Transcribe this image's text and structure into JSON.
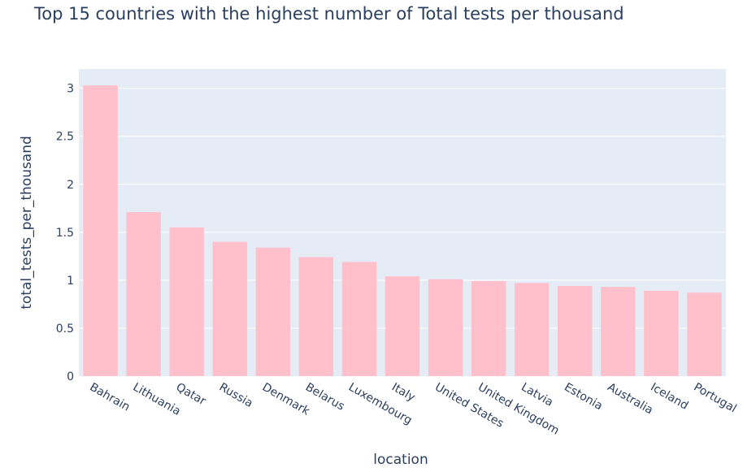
{
  "chart_data": {
    "type": "bar",
    "title": "Top 15 countries with the highest number of Total tests per thousand",
    "xlabel": "location",
    "ylabel": "total_tests_per_thousand",
    "categories": [
      "Bahrain",
      "Lithuania",
      "Qatar",
      "Russia",
      "Denmark",
      "Belarus",
      "Luxembourg",
      "Italy",
      "United States",
      "United Kingdom",
      "Latvia",
      "Estonia",
      "Australia",
      "Iceland",
      "Portugal"
    ],
    "values": [
      3.03,
      1.71,
      1.55,
      1.4,
      1.34,
      1.24,
      1.19,
      1.04,
      1.01,
      0.99,
      0.97,
      0.94,
      0.93,
      0.89,
      0.87
    ],
    "yticks": [
      "0",
      "0.5",
      "1",
      "1.5",
      "2",
      "2.5",
      "3"
    ],
    "ylim": [
      0,
      3.2
    ],
    "grid": true,
    "legend": "none",
    "colors": {
      "bar": "#ffc0cb",
      "plot_background": "#e5ecf6",
      "grid": "#ffffff",
      "text": "#2a3f5f"
    }
  }
}
